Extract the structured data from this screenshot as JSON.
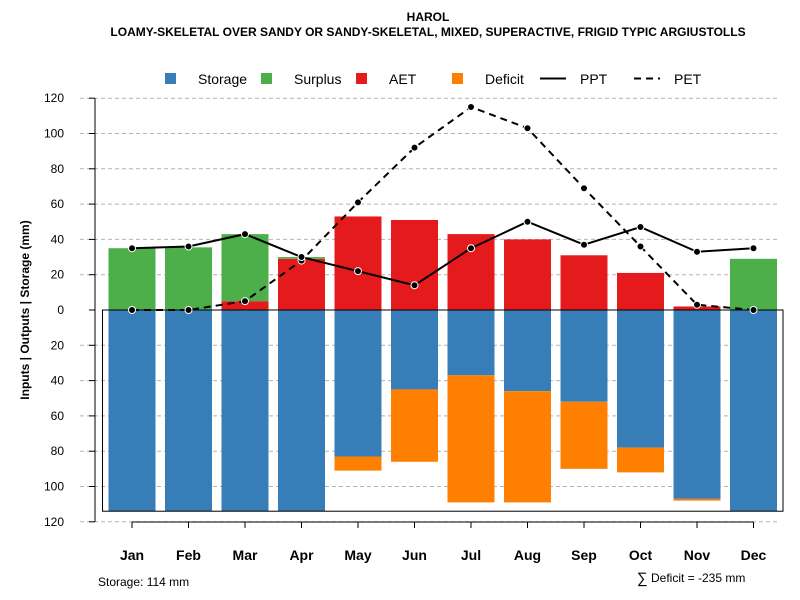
{
  "chart_data": {
    "type": "bar",
    "title": "HAROL",
    "subtitle": "LOAMY-SKELETAL OVER SANDY OR SANDY-SKELETAL, MIXED, SUPERACTIVE, FRIGID TYPIC ARGIUSTOLLS",
    "ylabel": "Inputs | Outputs | Storage    (mm)",
    "ylim": [
      -120,
      120
    ],
    "yticks": [
      120,
      100,
      80,
      60,
      40,
      20,
      0,
      20,
      40,
      60,
      80,
      100,
      120
    ],
    "categories": [
      "Jan",
      "Feb",
      "Mar",
      "Apr",
      "May",
      "Jun",
      "Jul",
      "Aug",
      "Sep",
      "Oct",
      "Nov",
      "Dec"
    ],
    "series": [
      {
        "name": "Storage",
        "color": "#377EB8",
        "values": [
          114,
          114,
          114,
          114,
          83,
          45,
          37,
          46,
          52,
          78,
          107,
          114
        ]
      },
      {
        "name": "Surplus",
        "color": "#4DAF4A",
        "values": [
          35,
          35.5,
          38,
          1,
          0,
          0,
          0,
          0,
          0,
          0,
          0,
          29
        ]
      },
      {
        "name": "AET",
        "color": "#E41A1C",
        "values": [
          0,
          0,
          5,
          29,
          53,
          51,
          43,
          40,
          31,
          21,
          2,
          0
        ]
      },
      {
        "name": "Deficit",
        "color": "#FF7F00",
        "values": [
          0,
          0,
          0,
          0,
          8,
          41,
          72,
          63,
          38,
          14,
          1,
          0
        ]
      },
      {
        "name": "PPT",
        "style": "solid",
        "values": [
          35,
          36,
          43,
          30,
          22,
          14,
          35,
          50,
          37,
          47,
          33,
          35
        ]
      },
      {
        "name": "PET",
        "style": "dashed",
        "values": [
          0,
          0,
          5,
          28,
          61,
          92,
          115,
          103,
          69,
          36,
          3,
          0
        ]
      }
    ],
    "legend": [
      "Storage",
      "Surplus",
      "AET",
      "Deficit",
      "PPT",
      "PET"
    ],
    "legend_position": "top",
    "grid": true,
    "storage_label": "Storage: 114 mm",
    "deficit_label": "Deficit = -235 mm",
    "deficit_symbol": "∑"
  }
}
